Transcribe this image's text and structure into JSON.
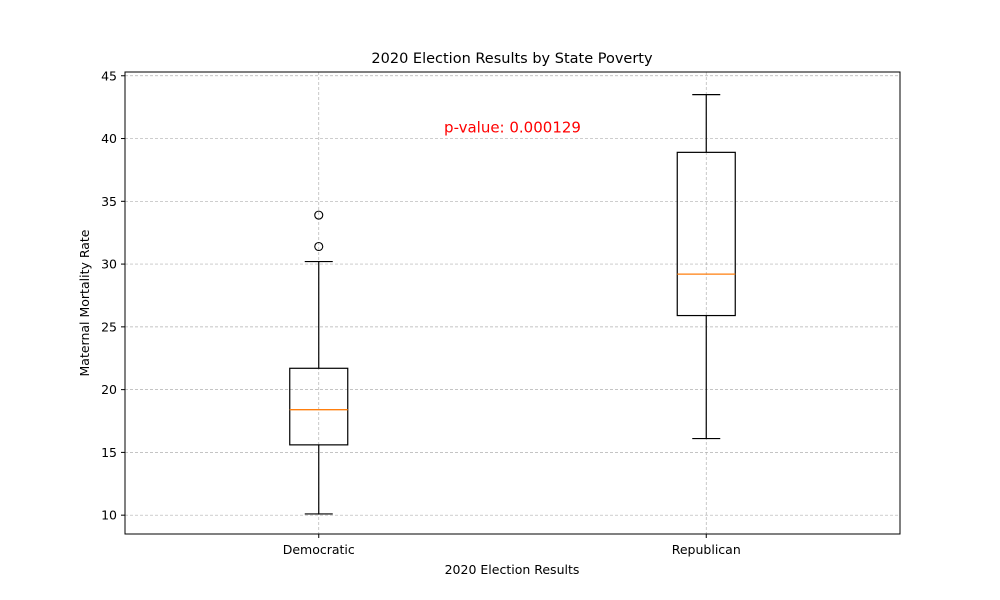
{
  "chart_data": {
    "type": "box",
    "title": "2020 Election Results by State Poverty",
    "xlabel": "2020 Election Results",
    "ylabel": "Maternal Mortality Rate",
    "categories": [
      "Democratic",
      "Republican"
    ],
    "ylim": [
      8.5,
      45.3
    ],
    "yticks": [
      10,
      15,
      20,
      25,
      30,
      35,
      40,
      45
    ],
    "grid": true,
    "boxes": [
      {
        "name": "Democratic",
        "whisker_low": 10.1,
        "q1": 15.6,
        "median": 18.4,
        "q3": 21.7,
        "whisker_high": 30.2,
        "outliers": [
          31.4,
          33.9
        ]
      },
      {
        "name": "Republican",
        "whisker_low": 16.1,
        "q1": 25.9,
        "median": 29.2,
        "q3": 38.9,
        "whisker_high": 43.5,
        "outliers": []
      }
    ],
    "annotation": {
      "text": "p-value: 0.000129",
      "x": 0.5,
      "y": 40.5,
      "color": "#ff0000"
    },
    "colors": {
      "box": "#000000",
      "median": "#ff7f0e",
      "grid": "#b0b0b0",
      "annotation": "#ff0000"
    }
  }
}
